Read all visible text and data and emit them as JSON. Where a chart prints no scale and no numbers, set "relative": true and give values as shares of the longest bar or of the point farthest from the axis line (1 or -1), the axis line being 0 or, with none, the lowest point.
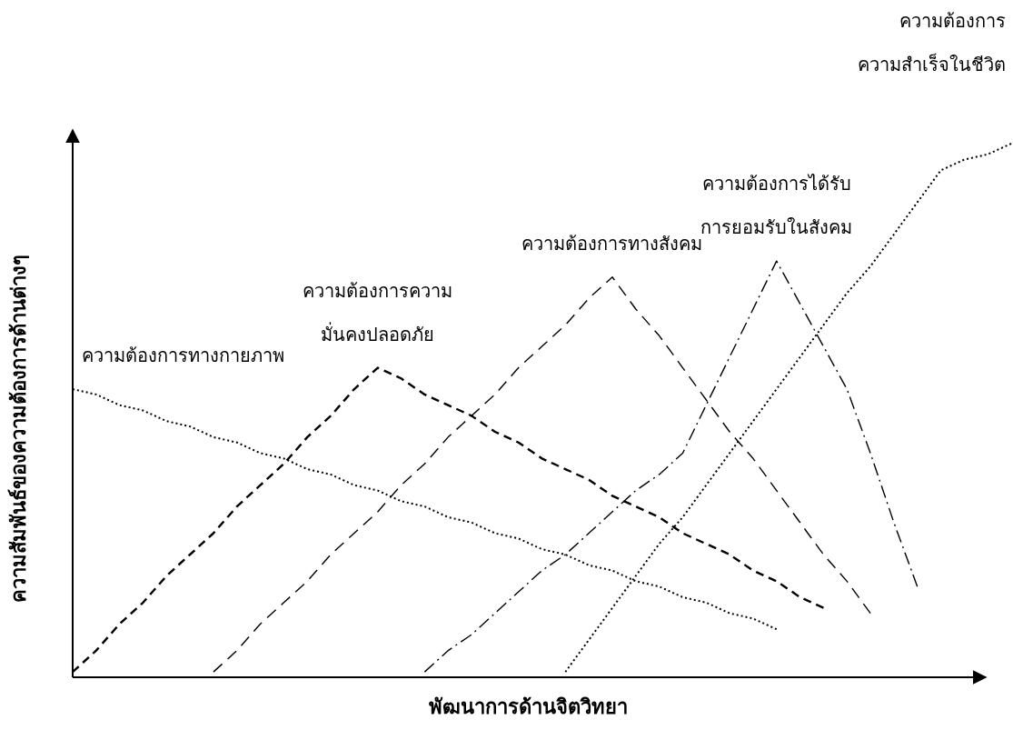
{
  "chart_data": {
    "type": "line",
    "relative": true,
    "xlabel": "พัฒนาการด้านจิตวิทยา",
    "ylabel": "ความสัมพันธ์ของความต้องการด้านต่างๆ",
    "categories": [
      null,
      null,
      null,
      null,
      null,
      null,
      null,
      null,
      null,
      null,
      null,
      null,
      null,
      null,
      null,
      null,
      null,
      null,
      null,
      null,
      null,
      null,
      null,
      null,
      null,
      null,
      null,
      null,
      null,
      null,
      null,
      null,
      null,
      null,
      null,
      null,
      null,
      null,
      null,
      null,
      null
    ],
    "series": [
      {
        "name": "ความต้องการทางกายภาพ",
        "color": "#000000",
        "line_style": "dotted",
        "values": [
          0.54,
          0.53,
          0.51,
          0.5,
          0.48,
          0.47,
          0.45,
          0.44,
          0.42,
          0.41,
          0.39,
          0.38,
          0.36,
          0.35,
          0.33,
          0.32,
          0.3,
          0.29,
          0.27,
          0.26,
          0.24,
          0.23,
          0.21,
          0.2,
          0.18,
          0.17,
          0.15,
          0.14,
          0.12,
          0.11,
          0.09,
          null,
          null,
          null,
          null,
          null,
          null,
          null,
          null,
          null,
          null
        ]
      },
      {
        "name": "ความต้องการความ\nมั่นคงปลอดภัย",
        "color": "#000000",
        "line_style": "dashed",
        "values": [
          0.01,
          0.05,
          0.1,
          0.14,
          0.19,
          0.23,
          0.27,
          0.32,
          0.36,
          0.4,
          0.45,
          0.49,
          0.54,
          0.58,
          0.56,
          0.53,
          0.51,
          0.49,
          0.46,
          0.44,
          0.41,
          0.39,
          0.37,
          0.34,
          0.32,
          0.3,
          0.27,
          0.25,
          0.23,
          0.2,
          0.18,
          0.15,
          0.13,
          null,
          null,
          null,
          null,
          null,
          null,
          null,
          null
        ]
      },
      {
        "name": "ความต้องการทางสังคม",
        "color": "#000000",
        "line_style": "longdash",
        "values": [
          null,
          null,
          null,
          null,
          null,
          null,
          0.01,
          0.05,
          0.1,
          0.14,
          0.18,
          0.23,
          0.27,
          0.31,
          0.36,
          0.4,
          0.45,
          0.49,
          0.53,
          0.58,
          0.62,
          0.66,
          0.71,
          0.75,
          0.69,
          0.64,
          0.58,
          0.52,
          0.46,
          0.41,
          0.35,
          0.29,
          0.23,
          0.18,
          0.12,
          null,
          null,
          null,
          null,
          null,
          null
        ]
      },
      {
        "name": "ความต้องการได้รับ\nการยอมรับในสังคม",
        "color": "#000000",
        "line_style": "dashdot",
        "values": [
          null,
          null,
          null,
          null,
          null,
          null,
          null,
          null,
          null,
          null,
          null,
          null,
          null,
          null,
          null,
          0.01,
          0.05,
          0.08,
          0.12,
          0.16,
          0.2,
          0.23,
          0.27,
          0.31,
          0.35,
          0.38,
          0.42,
          0.51,
          0.6,
          0.69,
          0.78,
          0.7,
          0.62,
          0.54,
          0.42,
          0.29,
          0.17,
          null,
          null,
          null,
          null
        ]
      },
      {
        "name": "ความต้องการ\nความสำเร็จในชีวิต",
        "color": "#000000",
        "line_style": "dotted",
        "values": [
          null,
          null,
          null,
          null,
          null,
          null,
          null,
          null,
          null,
          null,
          null,
          null,
          null,
          null,
          null,
          null,
          null,
          null,
          null,
          null,
          null,
          0.01,
          0.07,
          0.13,
          0.19,
          0.25,
          0.3,
          0.36,
          0.42,
          0.48,
          0.54,
          0.6,
          0.66,
          0.72,
          0.77,
          0.83,
          0.89,
          0.95,
          0.97,
          0.98,
          1
        ]
      }
    ]
  }
}
